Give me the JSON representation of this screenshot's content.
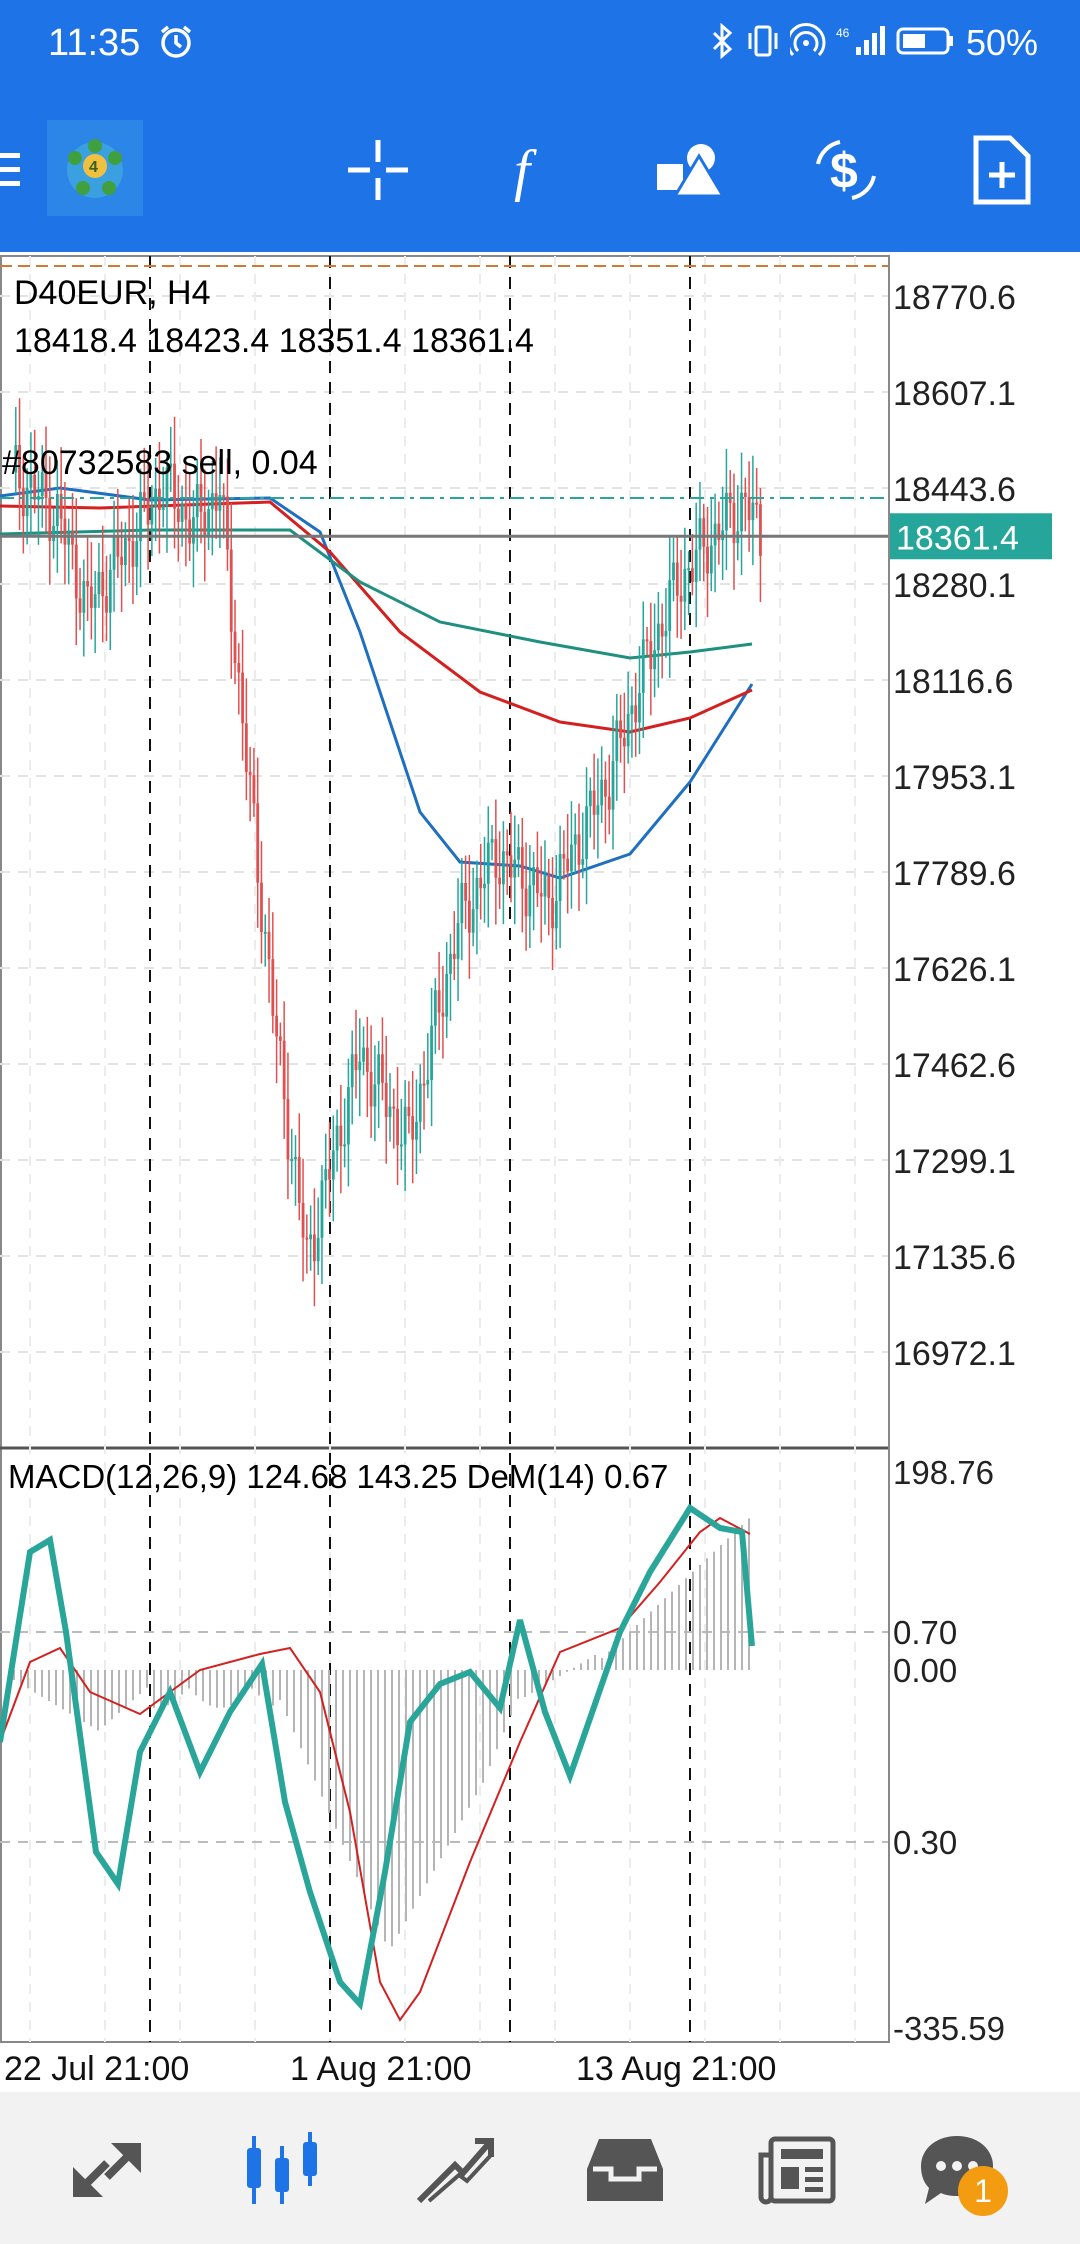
{
  "status_bar": {
    "time": "11:35",
    "battery": "50%",
    "icons": [
      "alarm-icon",
      "bluetooth-icon",
      "vibrate-icon",
      "hotspot-icon",
      "signal-icon",
      "battery-icon"
    ]
  },
  "toolbar": {
    "icons": [
      "menu-icon",
      "app-logo-icon",
      "crosshair-icon",
      "function-icon",
      "objects-icon",
      "dollar-icon",
      "new-order-icon"
    ]
  },
  "chart": {
    "symbol": "D40EUR, H4",
    "ohlc": "18418.4 18423.4 18351.4 18361.4",
    "order_label": "#80732583 sell, 0.04",
    "current_price": "18361.4",
    "price_levels": [
      "18770.6",
      "18607.1",
      "18443.6",
      "18280.1",
      "18116.6",
      "17953.1",
      "17789.6",
      "17626.1",
      "17462.6",
      "17299.1",
      "17135.6",
      "16972.1"
    ],
    "colors": {
      "up": "#26a69a",
      "down": "#e05050",
      "ma_blue": "#1f6fc1",
      "ma_red": "#d32020",
      "ma_teal": "#1f8f80",
      "price_tag": "#26a69a"
    }
  },
  "indicator": {
    "label": "MACD(12,26,9) 124.68 143.25 DeM(14) 0.67",
    "levels": [
      "198.76",
      "0.70",
      "0.00",
      "0.30",
      "-335.59"
    ]
  },
  "time_axis": [
    "22 Jul 21:00",
    "1 Aug 21:00",
    "13 Aug 21:00"
  ],
  "bottom_nav": {
    "icons": [
      "quotes-icon",
      "chart-icon",
      "trade-icon",
      "history-icon",
      "news-icon",
      "messages-icon"
    ],
    "badge": "1"
  }
}
